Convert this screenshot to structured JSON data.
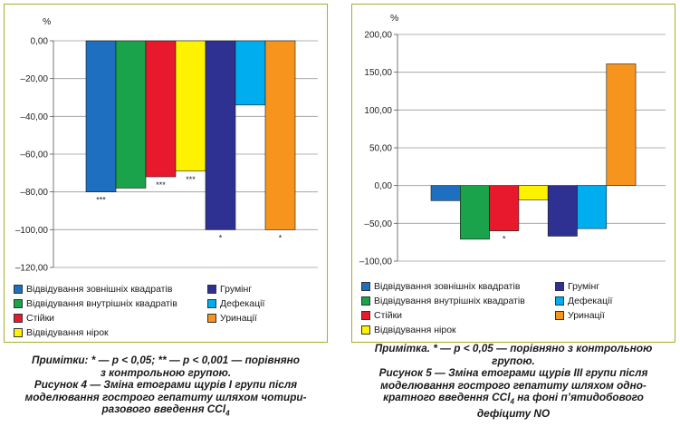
{
  "chart_data": [
    {
      "type": "bar",
      "unit": "%",
      "ylim": [
        -120,
        0
      ],
      "yticks": [
        0,
        -20,
        -40,
        -60,
        -80,
        -100,
        -120
      ],
      "yticklabels": [
        "0,00",
        "–20,00",
        "–40,00",
        "–60,00",
        "–80,00",
        "–100,00",
        "–120,00"
      ],
      "grid": true,
      "series": [
        {
          "name": "Відвідування зовнішніх квадратів",
          "value": -80,
          "marker": "***",
          "color": "#1e6fc0"
        },
        {
          "name": "Відвідування внутрішніх квадратів",
          "value": -78,
          "marker": "",
          "color": "#1aa34a"
        },
        {
          "name": "Стійки",
          "value": -72,
          "marker": "***",
          "color": "#e8192c"
        },
        {
          "name": "Відвідування нірок",
          "value": -69,
          "marker": "***",
          "color": "#fff200"
        },
        {
          "name": "Грумінг",
          "value": -100,
          "marker": "*",
          "color": "#2e3192"
        },
        {
          "name": "Дефекації",
          "value": -34,
          "marker": "",
          "color": "#00aeef"
        },
        {
          "name": "Уринації",
          "value": -100,
          "marker": "*",
          "color": "#f7941d"
        }
      ],
      "legend": {
        "left": [
          "Відвідування зовнішніх квадратів",
          "Відвідування внутрішніх квадратів",
          "Стійки",
          "Відвідування нірок"
        ],
        "right": [
          "Грумінг",
          "Дефекації",
          "Уринації"
        ]
      }
    },
    {
      "type": "bar",
      "unit": "%",
      "ylim": [
        -100,
        200
      ],
      "yticks": [
        200,
        150,
        100,
        50,
        0,
        -50,
        -100
      ],
      "yticklabels": [
        "200,00",
        "150,00",
        "100,00",
        "50,00",
        "0,00",
        "–50,00",
        "–100,00"
      ],
      "grid": true,
      "series": [
        {
          "name": "Відвідування зовнішніх квадратів",
          "value": -20,
          "marker": "",
          "color": "#1e6fc0"
        },
        {
          "name": "Відвідування внутрішніх квадратів",
          "value": -71,
          "marker": "",
          "color": "#1aa34a"
        },
        {
          "name": "Стійки",
          "value": -60,
          "marker": "*",
          "color": "#e8192c"
        },
        {
          "name": "Відвідування нірок",
          "value": -19,
          "marker": "",
          "color": "#fff200"
        },
        {
          "name": "Грумінг",
          "value": -67,
          "marker": "",
          "color": "#2e3192"
        },
        {
          "name": "Дефекації",
          "value": -57,
          "marker": "",
          "color": "#00aeef"
        },
        {
          "name": "Уринації",
          "value": 161,
          "marker": "",
          "color": "#f7941d"
        }
      ],
      "legend": {
        "left": [
          "Відвідування зовнішніх квадратів",
          "Відвідування внутрішніх квадратів",
          "Стійки",
          "Відвідування нірок"
        ],
        "right": [
          "Грумінг",
          "Дефекації",
          "Уринації"
        ]
      }
    }
  ],
  "captions": [
    {
      "note_lines": [
        "Примітки: * — р < 0,05; ** — р < 0,001 — порівняно",
        "з контрольною групою."
      ],
      "figure_lines": [
        "Рисунок 4 — Зміна етограми щурів І групи після",
        "моделювання гострого гепатиту шляхом чотири-"
      ],
      "last_prefix": "разового введення CCl",
      "last_sub": "4",
      "last_suffix": ""
    },
    {
      "note_lines": [
        "Примітка. * — р < 0,05 — порівняно з контрольною",
        "групою."
      ],
      "figure_lines": [
        "Рисунок 5 — Зміна етограми щурів ІІІ групи після",
        "моделювання гострого гепатиту шляхом одно-"
      ],
      "last_prefix": "кратного введення CCl",
      "last_sub": "4",
      "last_suffix": " на фоні п’ятидобового",
      "tail_line": "дефіциту NO"
    }
  ]
}
